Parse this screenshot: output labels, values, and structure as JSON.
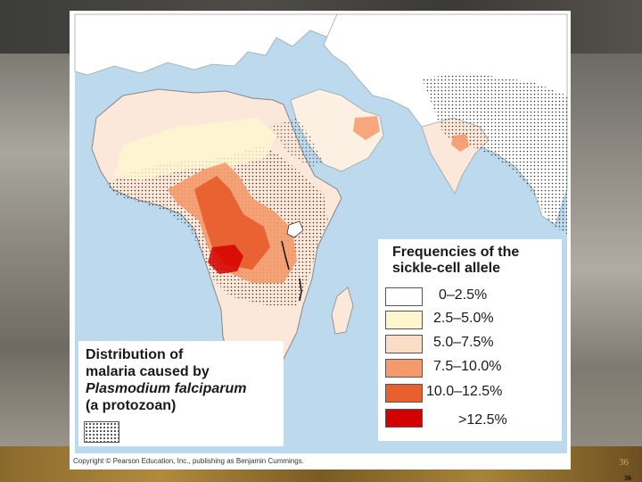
{
  "legend": {
    "title_line1": "Frequencies of the",
    "title_line2": "sickle-cell allele",
    "items": [
      {
        "label": "0–2.5%",
        "color": "#ffffff"
      },
      {
        "label": "2.5–5.0%",
        "color": "#fff6cf"
      },
      {
        "label": "5.0–7.5%",
        "color": "#fbdcc6"
      },
      {
        "label": "7.5–10.0%",
        "color": "#f59a6c"
      },
      {
        "label": "10.0–12.5%",
        "color": "#e8602e"
      },
      {
        "label": ">12.5%",
        "color": "#d40000"
      }
    ]
  },
  "distribution": {
    "line1": "Distribution of",
    "line2": "malaria caused by",
    "line3": "Plasmodium falciparum",
    "line4": "(a protozoan)"
  },
  "copyright": "Copyright © Pearson Education, Inc., publishing as Benjamin Cummings.",
  "page_number": "36",
  "page_number_small": "36",
  "colors": {
    "ocean": "#bcd9ee",
    "land_base": "#fbe8da",
    "stipple": "#222222"
  }
}
